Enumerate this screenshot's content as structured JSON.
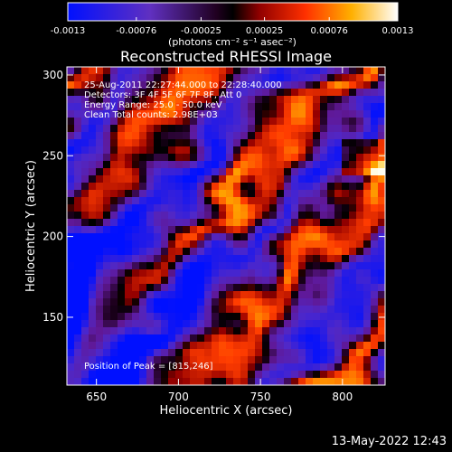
{
  "colorbar": {
    "ticks": [
      "-0.0013",
      "-0.00076",
      "-0.00025",
      "0.00025",
      "0.00076",
      "0.0013"
    ],
    "values": [
      -0.0013,
      -0.00076,
      -0.00025,
      0.00025,
      0.00076,
      0.0013
    ],
    "range": [
      -0.0013,
      0.0013
    ],
    "label": "(photons cm⁻² s⁻¹ asec⁻²)"
  },
  "chart_data": {
    "type": "heatmap",
    "title": "Reconstructed RHESSI Image",
    "xlabel": "Heliocentric X (arcsec)",
    "ylabel": "Heliocentric Y (arcsec)",
    "xlim": [
      632,
      826
    ],
    "ylim": [
      108,
      305
    ],
    "xticks": [
      650,
      700,
      750,
      800
    ],
    "yticks": [
      150,
      200,
      250,
      300
    ],
    "colormap": [
      "#0000ff",
      "#4020b0",
      "#6020a0",
      "#000000",
      "#c00000",
      "#ff6000",
      "#ffe000",
      "#ffffff"
    ],
    "annotations": [
      "25-Aug-2011 22:27:44.000 to 22:28:40.000",
      "Detectors: 3F 4F 5F 6F 7F 8F, Att 0",
      "Energy Range: 25.0 - 50.0 keV",
      "Clean    Total counts: 2.98E+03"
    ],
    "peak_label": "Position of Peak = [815,246]"
  },
  "timestamp": "13-May-2022 12:43"
}
